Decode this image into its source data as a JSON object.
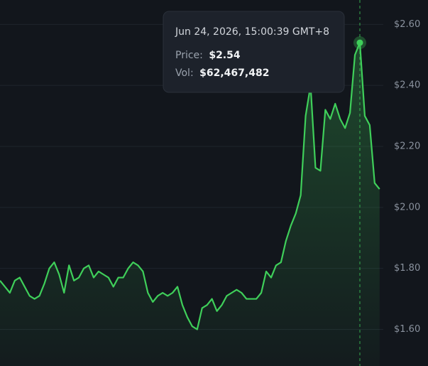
{
  "chart_data": {
    "type": "line",
    "series": [
      {
        "color": "#3fcf5a",
        "values": [
          1.76,
          1.74,
          1.72,
          1.76,
          1.77,
          1.74,
          1.71,
          1.7,
          1.71,
          1.75,
          1.8,
          1.82,
          1.78,
          1.72,
          1.81,
          1.76,
          1.77,
          1.8,
          1.81,
          1.77,
          1.79,
          1.78,
          1.77,
          1.74,
          1.77,
          1.77,
          1.8,
          1.82,
          1.81,
          1.79,
          1.72,
          1.69,
          1.71,
          1.72,
          1.71,
          1.72,
          1.74,
          1.68,
          1.64,
          1.61,
          1.6,
          1.67,
          1.68,
          1.7,
          1.66,
          1.68,
          1.71,
          1.72,
          1.73,
          1.72,
          1.7,
          1.7,
          1.7,
          1.72,
          1.79,
          1.77,
          1.81,
          1.82,
          1.89,
          1.94,
          1.98,
          2.04,
          2.3,
          2.4,
          2.13,
          2.12,
          2.32,
          2.29,
          2.34,
          2.29,
          2.26,
          2.31,
          2.5,
          2.54,
          2.3,
          2.27,
          2.08,
          2.06
        ]
      }
    ],
    "ylim": [
      1.48,
      2.68
    ],
    "yticks": [
      {
        "value": 1.6,
        "label": "$1.60"
      },
      {
        "value": 1.8,
        "label": "$1.80"
      },
      {
        "value": 2.0,
        "label": "$2.00"
      },
      {
        "value": 2.2,
        "label": "$2.20"
      },
      {
        "value": 2.4,
        "label": "$2.40"
      },
      {
        "value": 2.6,
        "label": "$2.60"
      }
    ],
    "grid": true,
    "hover_index": 73,
    "tooltip": {
      "title": "Jun 24, 2026, 15:00:39 GMT+8",
      "rows": [
        {
          "label": "Price:",
          "value": "$2.54"
        },
        {
          "label": "Vol:",
          "value": "$62,467,482"
        }
      ]
    }
  }
}
